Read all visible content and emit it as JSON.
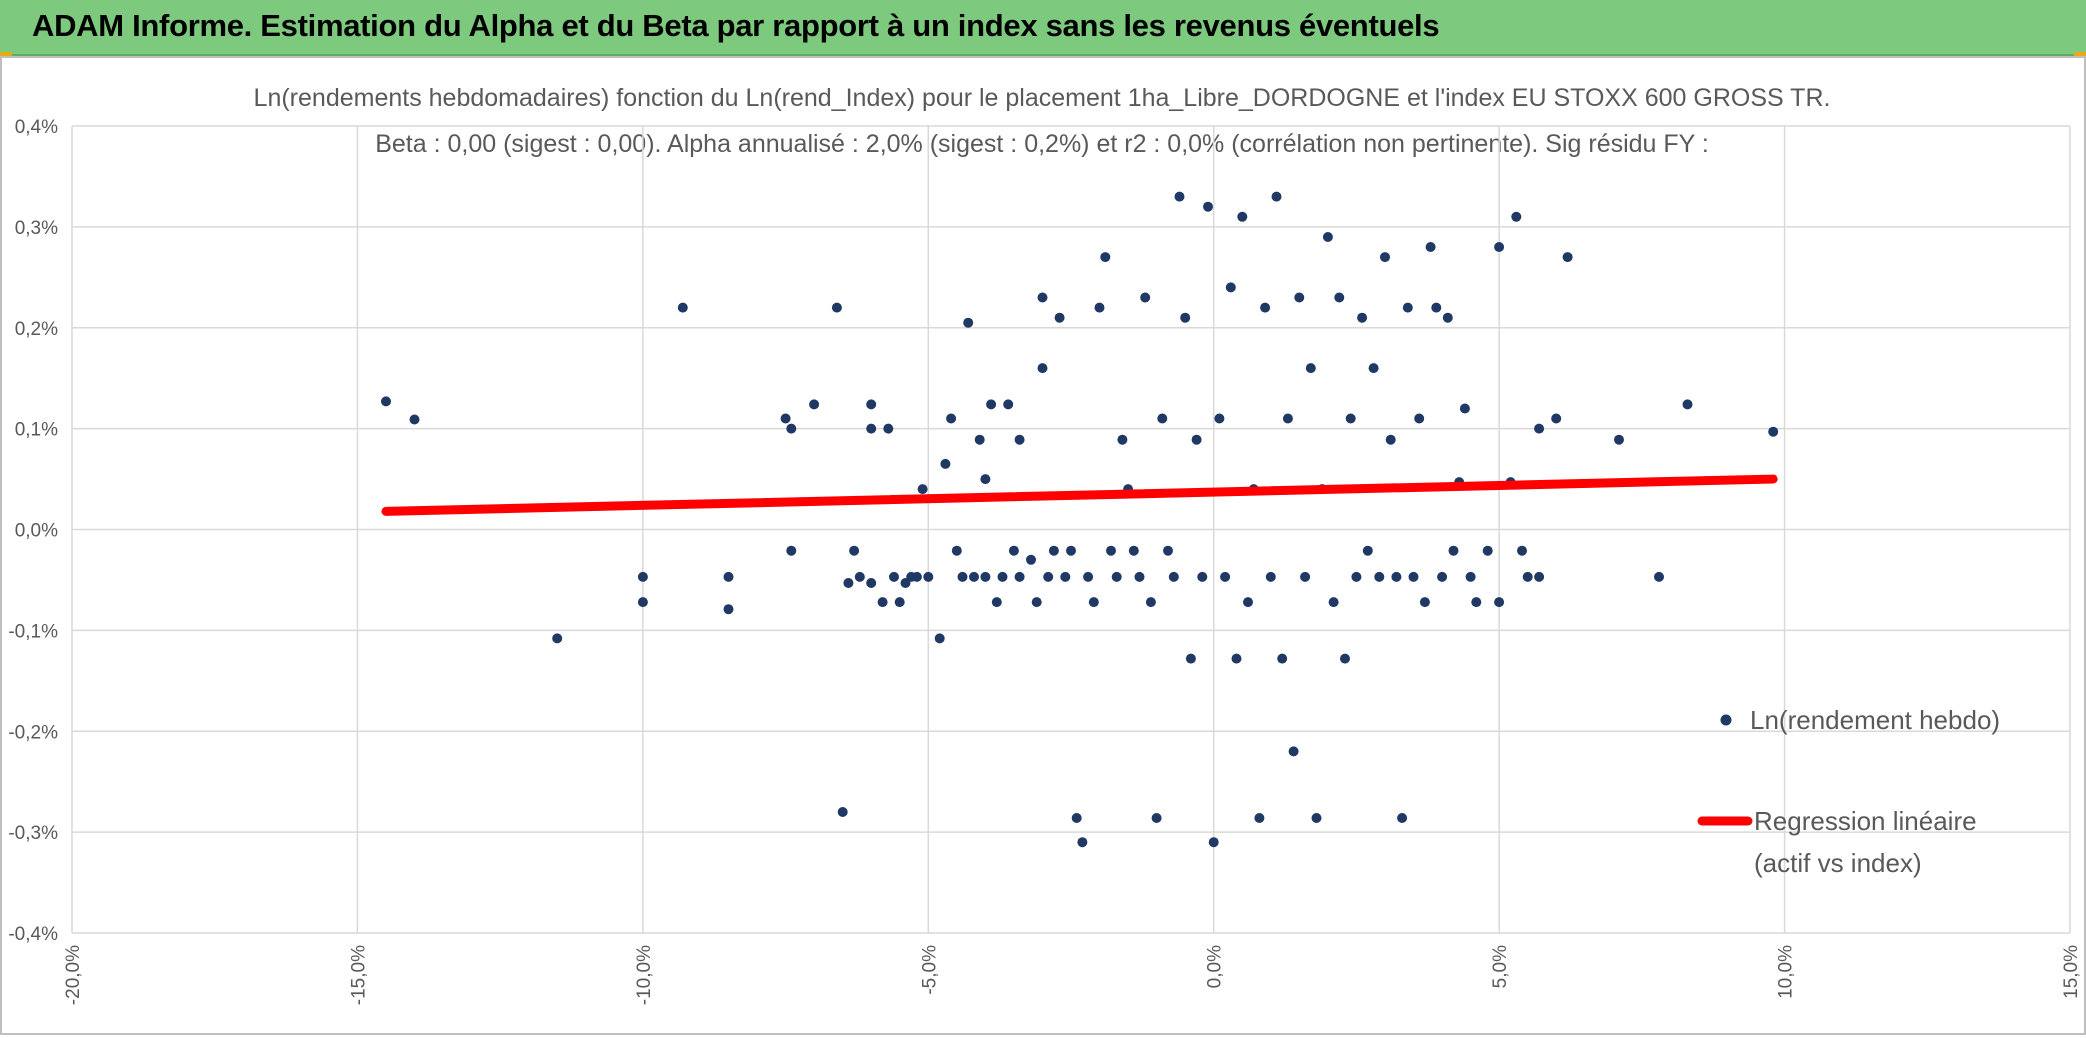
{
  "banner": {
    "title": "ADAM Informe. Estimation du Alpha et du Beta par rapport à un index sans les revenus éventuels"
  },
  "colors": {
    "banner_bg": "#7dc97d",
    "points": "#203864",
    "regression": "#ff0000",
    "grid": "#d9d9d9",
    "text": "#595959"
  },
  "chart_data": {
    "type": "scatter",
    "title_line1": "Ln(rendements hebdomadaires) fonction du Ln(rend_Index) pour le placement 1ha_Libre_DORDOGNE et l'index EU STOXX 600 GROSS TR.",
    "title_line2": "Beta : 0,00 (sigest : 0,00). Alpha annualisé : 2,0% (sigest : 0,2%) et r2 : 0,0% (corrélation non pertinente). Sig résidu FY :",
    "xlim": [
      -0.2,
      0.15
    ],
    "ylim": [
      -0.004,
      0.004
    ],
    "x_ticks": [
      "-20,0%",
      "-15,0%",
      "-10,0%",
      "-5,0%",
      "0,0%",
      "5,0%",
      "10,0%",
      "15,0%"
    ],
    "y_ticks": [
      "0,4%",
      "0,3%",
      "0,2%",
      "0,1%",
      "0,0%",
      "-0,1%",
      "-0,2%",
      "-0,3%",
      "-0,4%"
    ],
    "grid": true,
    "legend_position": "right",
    "legend": [
      "Ln(rendement hebdo)",
      "Regression linéaire",
      "(actif vs index)"
    ],
    "regression_line": {
      "x": [
        -0.145,
        0.098
      ],
      "y": [
        0.00018,
        0.0005
      ]
    },
    "series": [
      {
        "name": "Ln(rendement hebdo)",
        "points": [
          [
            -0.145,
            0.00127
          ],
          [
            -0.14,
            0.00109
          ],
          [
            -0.115,
            -0.00108
          ],
          [
            -0.1,
            -0.00047
          ],
          [
            -0.1,
            -0.00072
          ],
          [
            -0.093,
            0.0022
          ],
          [
            -0.085,
            -0.00047
          ],
          [
            -0.085,
            -0.00079
          ],
          [
            -0.075,
            0.0011
          ],
          [
            -0.074,
            0.001
          ],
          [
            -0.074,
            -0.00021
          ],
          [
            -0.07,
            0.00124
          ],
          [
            -0.066,
            0.0022
          ],
          [
            -0.065,
            -0.0028
          ],
          [
            -0.064,
            -0.00053
          ],
          [
            -0.063,
            -0.00021
          ],
          [
            -0.062,
            -0.00047
          ],
          [
            -0.06,
            0.00124
          ],
          [
            -0.06,
            0.001
          ],
          [
            -0.06,
            -0.00053
          ],
          [
            -0.058,
            -0.00072
          ],
          [
            -0.057,
            0.001
          ],
          [
            -0.056,
            -0.00047
          ],
          [
            -0.055,
            -0.00072
          ],
          [
            -0.054,
            -0.00053
          ],
          [
            -0.053,
            -0.00047
          ],
          [
            -0.052,
            -0.00047
          ],
          [
            -0.051,
            0.0004
          ],
          [
            -0.05,
            -0.00047
          ],
          [
            -0.048,
            -0.00108
          ],
          [
            -0.047,
            0.00065
          ],
          [
            -0.046,
            0.0011
          ],
          [
            -0.045,
            -0.00021
          ],
          [
            -0.044,
            -0.00047
          ],
          [
            -0.043,
            0.00205
          ],
          [
            -0.042,
            -0.00047
          ],
          [
            -0.041,
            0.00089
          ],
          [
            -0.04,
            -0.00047
          ],
          [
            -0.04,
            0.0005
          ],
          [
            -0.039,
            0.00124
          ],
          [
            -0.038,
            -0.00072
          ],
          [
            -0.037,
            -0.00047
          ],
          [
            -0.036,
            0.00124
          ],
          [
            -0.035,
            -0.00021
          ],
          [
            -0.034,
            -0.00047
          ],
          [
            -0.034,
            0.00089
          ],
          [
            -0.032,
            -0.0003
          ],
          [
            -0.031,
            -0.00072
          ],
          [
            -0.03,
            0.0023
          ],
          [
            -0.03,
            0.0016
          ],
          [
            -0.029,
            -0.00047
          ],
          [
            -0.028,
            -0.00021
          ],
          [
            -0.027,
            0.0021
          ],
          [
            -0.026,
            -0.00047
          ],
          [
            -0.025,
            -0.00021
          ],
          [
            -0.024,
            -0.00286
          ],
          [
            -0.023,
            -0.0031
          ],
          [
            -0.022,
            -0.00047
          ],
          [
            -0.021,
            -0.00072
          ],
          [
            -0.02,
            0.0022
          ],
          [
            -0.019,
            0.0027
          ],
          [
            -0.018,
            -0.00021
          ],
          [
            -0.017,
            -0.00047
          ],
          [
            -0.016,
            0.00089
          ],
          [
            -0.015,
            0.0004
          ],
          [
            -0.014,
            -0.00021
          ],
          [
            -0.013,
            -0.00047
          ],
          [
            -0.012,
            0.0023
          ],
          [
            -0.011,
            -0.00072
          ],
          [
            -0.01,
            -0.00286
          ],
          [
            -0.009,
            0.0011
          ],
          [
            -0.008,
            -0.00021
          ],
          [
            -0.007,
            -0.00047
          ],
          [
            -0.006,
            0.0033
          ],
          [
            -0.005,
            0.0021
          ],
          [
            -0.004,
            -0.00128
          ],
          [
            -0.003,
            0.00089
          ],
          [
            -0.002,
            -0.00047
          ],
          [
            -0.001,
            0.0032
          ],
          [
            0.0,
            -0.0031
          ],
          [
            0.001,
            0.0011
          ],
          [
            0.002,
            -0.00047
          ],
          [
            0.003,
            0.0024
          ],
          [
            0.004,
            -0.00128
          ],
          [
            0.005,
            0.0031
          ],
          [
            0.006,
            -0.00072
          ],
          [
            0.007,
            0.0004
          ],
          [
            0.008,
            -0.00286
          ],
          [
            0.009,
            0.0022
          ],
          [
            0.01,
            -0.00047
          ],
          [
            0.011,
            0.0033
          ],
          [
            0.012,
            -0.00128
          ],
          [
            0.013,
            0.0011
          ],
          [
            0.014,
            -0.0022
          ],
          [
            0.015,
            0.0023
          ],
          [
            0.016,
            -0.00047
          ],
          [
            0.017,
            0.0016
          ],
          [
            0.018,
            -0.00286
          ],
          [
            0.019,
            0.0004
          ],
          [
            0.02,
            0.0029
          ],
          [
            0.021,
            -0.00072
          ],
          [
            0.022,
            0.0023
          ],
          [
            0.023,
            -0.00128
          ],
          [
            0.024,
            0.0011
          ],
          [
            0.025,
            -0.00047
          ],
          [
            0.026,
            0.0021
          ],
          [
            0.027,
            -0.00021
          ],
          [
            0.028,
            0.0016
          ],
          [
            0.029,
            -0.00047
          ],
          [
            0.03,
            0.0027
          ],
          [
            0.031,
            0.00089
          ],
          [
            0.032,
            -0.00047
          ],
          [
            0.033,
            -0.00286
          ],
          [
            0.034,
            0.0022
          ],
          [
            0.035,
            -0.00047
          ],
          [
            0.036,
            0.0011
          ],
          [
            0.037,
            -0.00072
          ],
          [
            0.038,
            0.0028
          ],
          [
            0.039,
            0.0022
          ],
          [
            0.04,
            -0.00047
          ],
          [
            0.041,
            0.0021
          ],
          [
            0.042,
            -0.00021
          ],
          [
            0.043,
            0.00047
          ],
          [
            0.044,
            0.0012
          ],
          [
            0.045,
            -0.00047
          ],
          [
            0.046,
            -0.00072
          ],
          [
            0.048,
            -0.00021
          ],
          [
            0.05,
            0.0028
          ],
          [
            0.05,
            -0.00072
          ],
          [
            0.052,
            0.00047
          ],
          [
            0.053,
            0.0031
          ],
          [
            0.054,
            -0.00021
          ],
          [
            0.055,
            -0.00047
          ],
          [
            0.057,
            0.001
          ],
          [
            0.057,
            -0.00047
          ],
          [
            0.06,
            0.0011
          ],
          [
            0.062,
            0.0027
          ],
          [
            0.071,
            0.00089
          ],
          [
            0.078,
            -0.00047
          ],
          [
            0.083,
            0.00124
          ],
          [
            0.098,
            0.00097
          ]
        ]
      }
    ]
  }
}
